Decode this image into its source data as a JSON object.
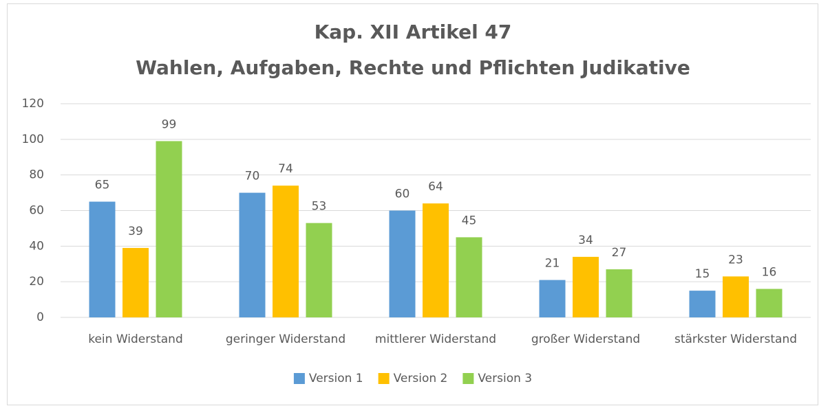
{
  "chart_data": {
    "type": "bar",
    "title": [
      "Kap. XII Artikel 47",
      "Wahlen, Aufgaben, Rechte und Pflichten Judikative"
    ],
    "categories": [
      "kein Widerstand",
      "geringer Widerstand",
      "mittlerer Widerstand",
      "großer Widerstand",
      "stärkster Widerstand"
    ],
    "series": [
      {
        "name": "Version 1",
        "color": "#5b9bd5",
        "values": [
          65,
          70,
          60,
          21,
          15
        ]
      },
      {
        "name": "Version 2",
        "color": "#ffc000",
        "values": [
          39,
          74,
          64,
          34,
          23
        ]
      },
      {
        "name": "Version 3",
        "color": "#92d050",
        "values": [
          99,
          53,
          45,
          27,
          16
        ]
      }
    ],
    "ylim": [
      0,
      120
    ],
    "yticks": [
      0,
      20,
      40,
      60,
      80,
      100,
      120
    ],
    "grid": true,
    "legend": "bottom"
  }
}
